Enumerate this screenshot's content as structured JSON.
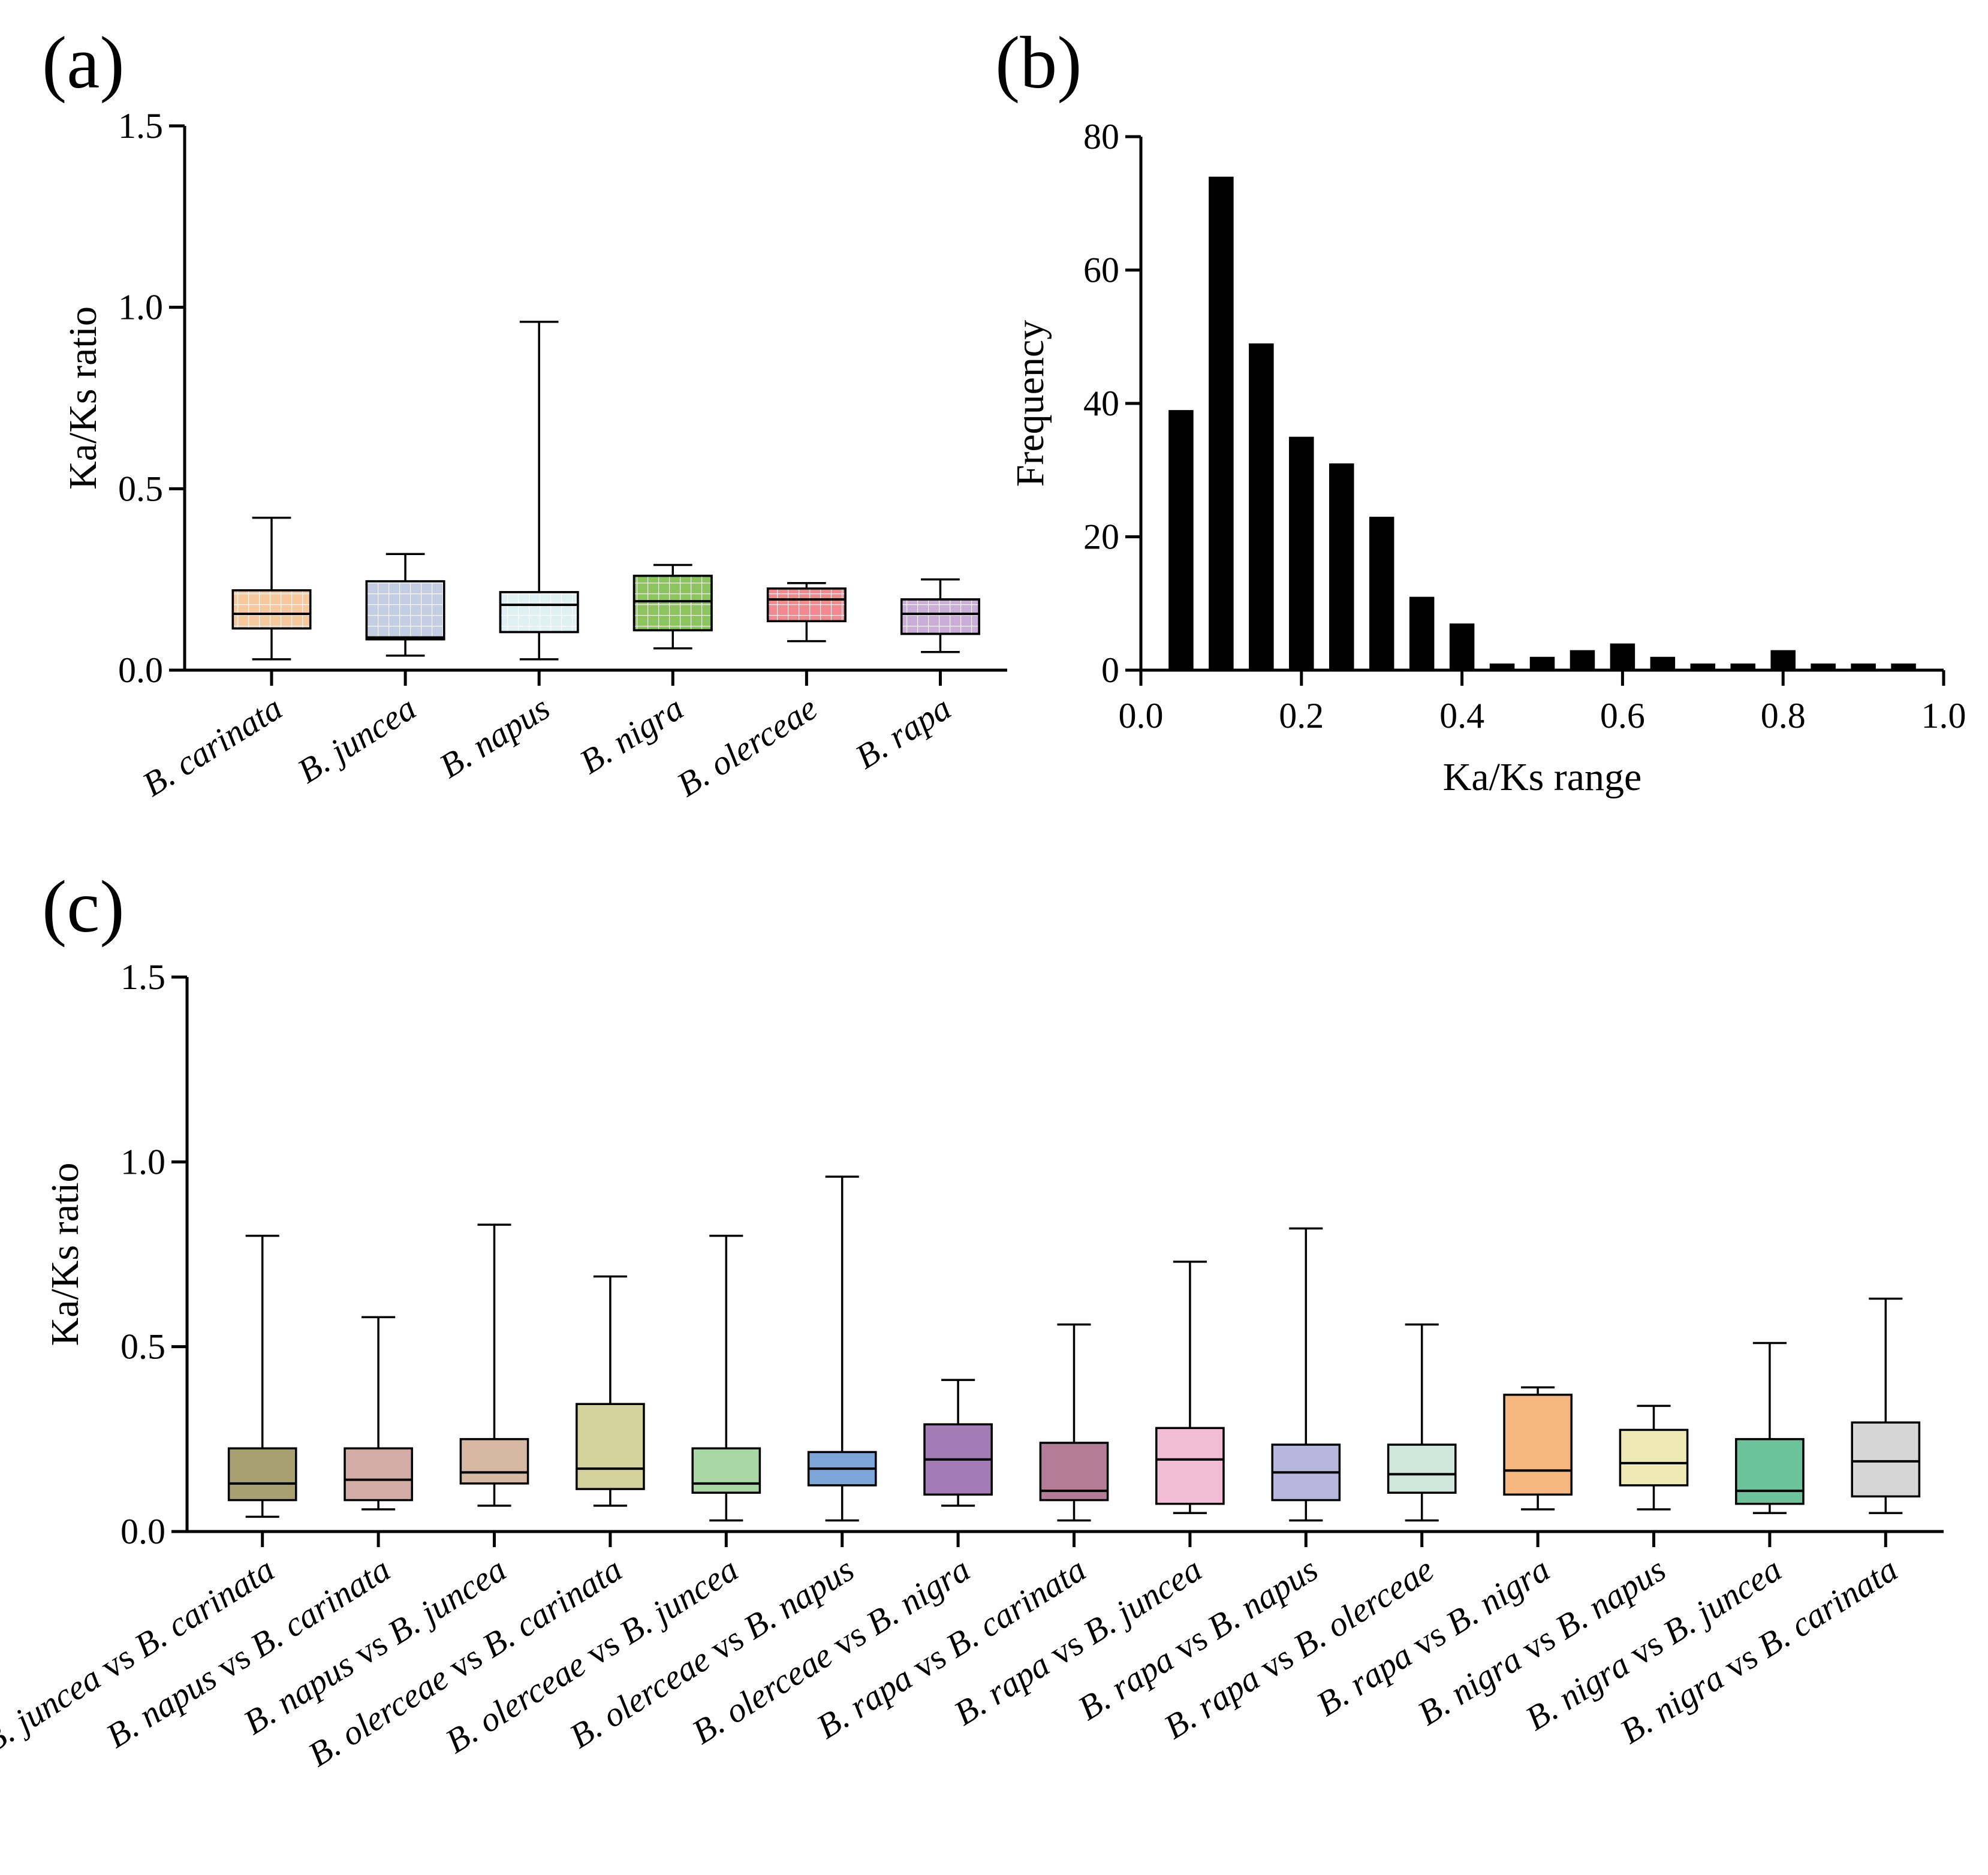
{
  "figure": {
    "panel_labels": [
      "(a)",
      "(b)",
      "(c)"
    ]
  },
  "chart_data": [
    {
      "panel": "(a)",
      "type": "boxplot",
      "title": "",
      "xlabel": "",
      "ylabel": "Ka/Ks ratio",
      "ylim": [
        0,
        1.5
      ],
      "yticks": [
        "0.0",
        "0.5",
        "1.0",
        "1.5"
      ],
      "fill_pattern": "grid",
      "categories": [
        "B. carinata",
        "B. juncea",
        "B. napus",
        "B. nigra",
        "B. olerceae",
        "B. rapa"
      ],
      "boxes": [
        {
          "min": 0.03,
          "q1": 0.115,
          "median": 0.155,
          "q3": 0.22,
          "max": 0.42,
          "color": "#f7c89c"
        },
        {
          "min": 0.04,
          "q1": 0.085,
          "median": 0.09,
          "q3": 0.245,
          "max": 0.32,
          "color": "#c3cde3"
        },
        {
          "min": 0.03,
          "q1": 0.105,
          "median": 0.18,
          "q3": 0.215,
          "max": 0.96,
          "color": "#dff1f3"
        },
        {
          "min": 0.06,
          "q1": 0.11,
          "median": 0.19,
          "q3": 0.26,
          "max": 0.29,
          "color": "#8cc55b"
        },
        {
          "min": 0.08,
          "q1": 0.135,
          "median": 0.195,
          "q3": 0.225,
          "max": 0.24,
          "color": "#f2898f"
        },
        {
          "min": 0.05,
          "q1": 0.1,
          "median": 0.155,
          "q3": 0.195,
          "max": 0.25,
          "color": "#cbaed8"
        }
      ]
    },
    {
      "panel": "(b)",
      "type": "bar",
      "title": "",
      "xlabel": "Ka/Ks range",
      "ylabel": "Frequency",
      "xlim": [
        0,
        1.0
      ],
      "ylim": [
        0,
        80
      ],
      "xticks": [
        "0.0",
        "0.2",
        "0.4",
        "0.6",
        "0.8",
        "1.0"
      ],
      "yticks": [
        "0",
        "20",
        "40",
        "60",
        "80"
      ],
      "x": [
        0.05,
        0.1,
        0.15,
        0.2,
        0.25,
        0.3,
        0.35,
        0.4,
        0.45,
        0.5,
        0.55,
        0.6,
        0.65,
        0.7,
        0.75,
        0.8,
        0.85,
        0.9,
        0.95
      ],
      "values": [
        39,
        74,
        49,
        35,
        31,
        23,
        11,
        7,
        1,
        2,
        3,
        4,
        2,
        1,
        1,
        3,
        1,
        1,
        1
      ],
      "color": "#000000"
    },
    {
      "panel": "(c)",
      "type": "boxplot",
      "title": "",
      "xlabel": "",
      "ylabel": "Ka/Ks ratio",
      "ylim": [
        0,
        1.5
      ],
      "yticks": [
        "0.0",
        "0.5",
        "1.0",
        "1.5"
      ],
      "fill_pattern": "none",
      "categories": [
        {
          "left": "B. juncea",
          "vs": "vs",
          "right": "B. carinata"
        },
        {
          "left": "B. napus",
          "vs": "vs",
          "right": "B. carinata"
        },
        {
          "left": "B. napus",
          "vs": "vs",
          "right": "B. juncea"
        },
        {
          "left": "B. olerceae",
          "vs": "vs",
          "right": "B. carinata"
        },
        {
          "left": "B. olerceae",
          "vs": "vs",
          "right": "B. juncea"
        },
        {
          "left": "B. olerceae",
          "vs": "vs",
          "right": "B. napus"
        },
        {
          "left": "B. olerceae",
          "vs": "vs",
          "right": "B. nigra"
        },
        {
          "left": "B. rapa",
          "vs": "vs",
          "right": "B. carinata"
        },
        {
          "left": "B. rapa",
          "vs": "vs",
          "right": "B. juncea"
        },
        {
          "left": "B. rapa",
          "vs": "vs",
          "right": "B. napus"
        },
        {
          "left": "B. rapa",
          "vs": "vs",
          "right": "B. olerceae"
        },
        {
          "left": "B. rapa",
          "vs": "vs",
          "right": "B. nigra"
        },
        {
          "left": "B. nigra",
          "vs": "vs",
          "right": "B. napus"
        },
        {
          "left": "B. nigra",
          "vs": "vs",
          "right": "B. juncea"
        },
        {
          "left": "B. nigra",
          "vs": "vs",
          "right": "B. carinata"
        }
      ],
      "boxes": [
        {
          "min": 0.04,
          "q1": 0.085,
          "median": 0.13,
          "q3": 0.225,
          "max": 0.8,
          "color": "#a8a070"
        },
        {
          "min": 0.06,
          "q1": 0.085,
          "median": 0.14,
          "q3": 0.225,
          "max": 0.58,
          "color": "#d4aca6"
        },
        {
          "min": 0.07,
          "q1": 0.13,
          "median": 0.16,
          "q3": 0.25,
          "max": 0.83,
          "color": "#d7b9a3"
        },
        {
          "min": 0.07,
          "q1": 0.115,
          "median": 0.17,
          "q3": 0.345,
          "max": 0.69,
          "color": "#d3d29d"
        },
        {
          "min": 0.03,
          "q1": 0.105,
          "median": 0.13,
          "q3": 0.225,
          "max": 0.8,
          "color": "#a7d8a4"
        },
        {
          "min": 0.03,
          "q1": 0.125,
          "median": 0.17,
          "q3": 0.215,
          "max": 0.96,
          "color": "#7ca5d8"
        },
        {
          "min": 0.07,
          "q1": 0.1,
          "median": 0.195,
          "q3": 0.29,
          "max": 0.41,
          "color": "#a37cb5"
        },
        {
          "min": 0.03,
          "q1": 0.085,
          "median": 0.11,
          "q3": 0.24,
          "max": 0.56,
          "color": "#b57c98"
        },
        {
          "min": 0.05,
          "q1": 0.075,
          "median": 0.195,
          "q3": 0.28,
          "max": 0.73,
          "color": "#f3bcd6"
        },
        {
          "min": 0.03,
          "q1": 0.085,
          "median": 0.16,
          "q3": 0.235,
          "max": 0.82,
          "color": "#b6b6de"
        },
        {
          "min": 0.03,
          "q1": 0.105,
          "median": 0.155,
          "q3": 0.235,
          "max": 0.56,
          "color": "#cfe6dc"
        },
        {
          "min": 0.06,
          "q1": 0.1,
          "median": 0.165,
          "q3": 0.37,
          "max": 0.39,
          "color": "#f6b77f"
        },
        {
          "min": 0.06,
          "q1": 0.125,
          "median": 0.185,
          "q3": 0.275,
          "max": 0.34,
          "color": "#eeeab4"
        },
        {
          "min": 0.05,
          "q1": 0.075,
          "median": 0.11,
          "q3": 0.25,
          "max": 0.51,
          "color": "#6bc29b"
        },
        {
          "min": 0.05,
          "q1": 0.095,
          "median": 0.19,
          "q3": 0.295,
          "max": 0.63,
          "color": "#d6d6d6"
        }
      ]
    }
  ]
}
